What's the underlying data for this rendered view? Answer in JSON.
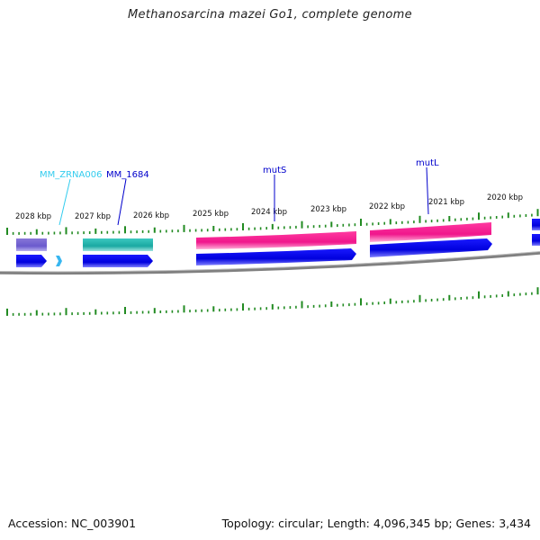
{
  "title": "Methanosarcina mazei Go1, complete genome",
  "footer": {
    "accession": "Accession: NC_003901",
    "summary": "Topology: circular; Length: 4,096,345 bp; Genes: 3,434"
  },
  "scale_labels": [
    "2028 kbp",
    "2027 kbp",
    "2026 kbp",
    "2025 kbp",
    "2024 kbp",
    "2023 kbp",
    "2022 kbp",
    "2021 kbp",
    "2020 kbp"
  ],
  "gene_labels": {
    "zrna": "MM_ZRNA006",
    "mm1684": "MM_1684",
    "muts": "mutS",
    "mutl": "mutL"
  },
  "colors": {
    "backbone": "#808080",
    "ticks": "#228b22",
    "cds": "#0000ee",
    "gene_purple": "#6a5acd",
    "gene_teal": "#20b2aa",
    "gene_pink": "#ff1493",
    "rna": "#38b6f0",
    "label_blue": "#0000cc",
    "label_cyan": "#33ccee"
  }
}
